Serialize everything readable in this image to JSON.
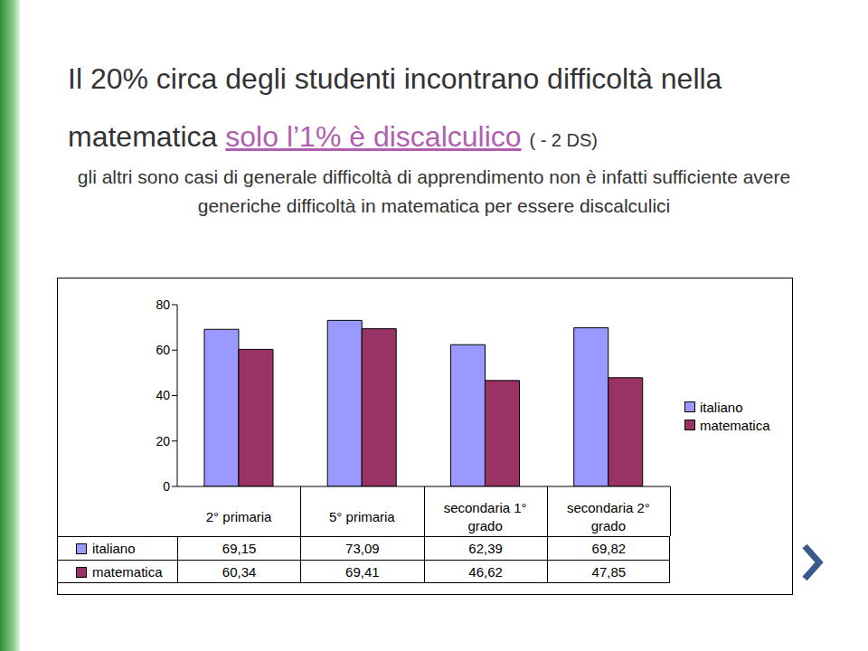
{
  "chart_data": {
    "type": "bar",
    "title": "Il 20% circa degli studenti incontrano difficoltà nella matematica",
    "annotations": [
      "solo l’1% è discalculico",
      "( - 2 DS)"
    ],
    "subtitle": "gli altri sono casi di generale difficoltà di apprendimento non è infatti sufficiente avere generiche difficoltà in matematica per essere discalculici",
    "categories": [
      "2° primaria",
      "5° primaria",
      "secondaria 1° grado",
      "secondaria 2° grado"
    ],
    "series": [
      {
        "name": "italiano",
        "color": "#9999ff",
        "values": [
          69.15,
          73.09,
          62.39,
          69.82
        ],
        "value_labels": [
          "69,15",
          "73,09",
          "62,39",
          "69,82"
        ]
      },
      {
        "name": "matematica",
        "color": "#993366",
        "values": [
          60.34,
          69.41,
          46.62,
          47.85
        ],
        "value_labels": [
          "60,34",
          "69,41",
          "46,62",
          "47,85"
        ]
      }
    ],
    "ylim": [
      0,
      80
    ],
    "yticks": [
      0,
      20,
      40,
      60,
      80
    ],
    "grid": false,
    "legend": "right"
  }
}
